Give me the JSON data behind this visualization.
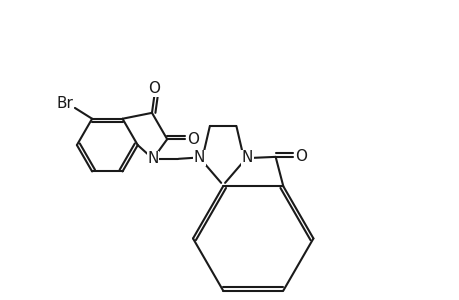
{
  "background_color": "#ffffff",
  "line_color": "#1a1a1a",
  "line_width": 1.5,
  "font_size": 10,
  "figsize": [
    4.6,
    3.0
  ],
  "dpi": 100,
  "xlim": [
    0,
    9.2
  ],
  "ylim": [
    0,
    6.0
  ]
}
